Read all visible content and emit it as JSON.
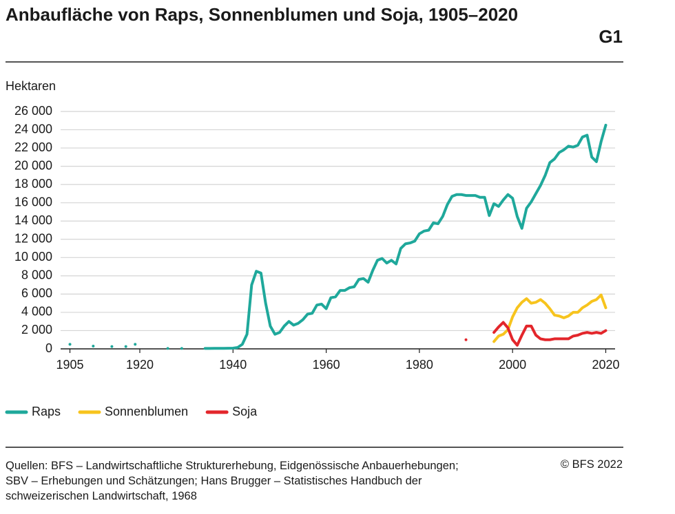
{
  "chart_data": {
    "type": "line",
    "title": "Anbaufläche von Raps, Sonnenblumen und Soja, 1905–2020",
    "code": "G1",
    "y_label": "Hektaren",
    "source": "Quellen: BFS – Landwirtschaftliche Strukturerhebung, Eidgenössische Anbauerhebungen; SBV – Erhebungen und Schätzungen; Hans Brugger – Statistisches Handbuch der schweizerischen Landwirtschaft, 1968",
    "copyright": "© BFS 2022",
    "xlim": [
      1903,
      2022
    ],
    "xticks": [
      1905,
      1920,
      1940,
      1960,
      1980,
      2000,
      2020
    ],
    "ylim": [
      0,
      26000
    ],
    "yticks": [
      0,
      {
        "value": 2000,
        "label": "2 000"
      },
      {
        "value": 4000,
        "label": "4 000"
      },
      {
        "value": 6000,
        "label": "6 000"
      },
      {
        "value": 8000,
        "label": "8 000"
      },
      {
        "value": 10000,
        "label": "10 000"
      },
      {
        "value": 12000,
        "label": "12 000"
      },
      {
        "value": 14000,
        "label": "14 000"
      },
      {
        "value": 16000,
        "label": "16 000"
      },
      {
        "value": 18000,
        "label": "18 000"
      },
      {
        "value": 20000,
        "label": "20 000"
      },
      {
        "value": 22000,
        "label": "22 000"
      },
      {
        "value": 24000,
        "label": "24 000"
      },
      {
        "value": 26000,
        "label": "26 000"
      }
    ],
    "grid": true,
    "legend": "bottom-left",
    "series": [
      {
        "name": "Raps",
        "color": "#1fa89b",
        "x": [
          1905,
          1906,
          1910,
          1911,
          1914,
          1915,
          1917,
          1918,
          1919,
          1920,
          1926,
          1927,
          1929,
          1930,
          1934,
          1935,
          1936,
          1937,
          1938,
          1939,
          1940,
          1941,
          1942,
          1943,
          1944,
          1945,
          1946,
          1947,
          1948,
          1949,
          1950,
          1951,
          1952,
          1953,
          1954,
          1955,
          1956,
          1957,
          1958,
          1959,
          1960,
          1961,
          1962,
          1963,
          1964,
          1965,
          1966,
          1967,
          1968,
          1969,
          1970,
          1971,
          1972,
          1973,
          1974,
          1975,
          1976,
          1977,
          1978,
          1979,
          1980,
          1981,
          1982,
          1983,
          1984,
          1985,
          1986,
          1987,
          1988,
          1989,
          1990,
          1991,
          1992,
          1993,
          1994,
          1995,
          1996,
          1997,
          1998,
          1999,
          2000,
          2001,
          2002,
          2003,
          2004,
          2005,
          2006,
          2007,
          2008,
          2009,
          2010,
          2011,
          2012,
          2013,
          2014,
          2015,
          2016,
          2017,
          2018,
          2019,
          2020
        ],
        "values": [
          500,
          null,
          300,
          null,
          250,
          null,
          250,
          null,
          500,
          null,
          50,
          null,
          50,
          null,
          50,
          50,
          60,
          60,
          60,
          70,
          80,
          150,
          500,
          1600,
          7000,
          8500,
          8300,
          5000,
          2500,
          1600,
          1800,
          2500,
          3000,
          2600,
          2800,
          3200,
          3800,
          3900,
          4800,
          4900,
          4400,
          5600,
          5700,
          6400,
          6400,
          6700,
          6800,
          7600,
          7700,
          7300,
          8600,
          9700,
          9900,
          9400,
          9700,
          9300,
          11000,
          11500,
          11600,
          11800,
          12600,
          12900,
          13000,
          13800,
          13700,
          14500,
          15800,
          16700,
          16900,
          16900,
          16800,
          16800,
          16800,
          16600,
          16600,
          14600,
          15900,
          15600,
          16300,
          16900,
          16500,
          14500,
          13200,
          15400,
          16100,
          17000,
          17900,
          19000,
          20400,
          20800,
          21500,
          21800,
          22200,
          22100,
          22300,
          23200,
          23400,
          21000,
          20500,
          22700,
          24500
        ]
      },
      {
        "name": "Sonnenblumen",
        "color": "#f7c41e",
        "x": [
          1996,
          1997,
          1998,
          1999,
          2000,
          2001,
          2002,
          2003,
          2004,
          2005,
          2006,
          2007,
          2008,
          2009,
          2010,
          2011,
          2012,
          2013,
          2014,
          2015,
          2016,
          2017,
          2018,
          2019,
          2020
        ],
        "values": [
          800,
          1400,
          1600,
          2100,
          3500,
          4500,
          5100,
          5500,
          5000,
          5100,
          5400,
          5000,
          4400,
          3700,
          3600,
          3400,
          3600,
          4000,
          4000,
          4500,
          4800,
          5200,
          5400,
          5900,
          4500
        ]
      },
      {
        "name": "Soja",
        "color": "#e3262b",
        "x": [
          1990,
          1991,
          1996,
          1997,
          1998,
          1999,
          2000,
          2001,
          2002,
          2003,
          2004,
          2005,
          2006,
          2007,
          2008,
          2009,
          2010,
          2011,
          2012,
          2013,
          2014,
          2015,
          2016,
          2017,
          2018,
          2019,
          2020
        ],
        "values": [
          1000,
          null,
          1800,
          2400,
          2900,
          2300,
          1000,
          400,
          1500,
          2500,
          2500,
          1500,
          1100,
          1000,
          1000,
          1100,
          1100,
          1100,
          1100,
          1400,
          1500,
          1700,
          1800,
          1700,
          1800,
          1700,
          2000
        ]
      }
    ]
  }
}
